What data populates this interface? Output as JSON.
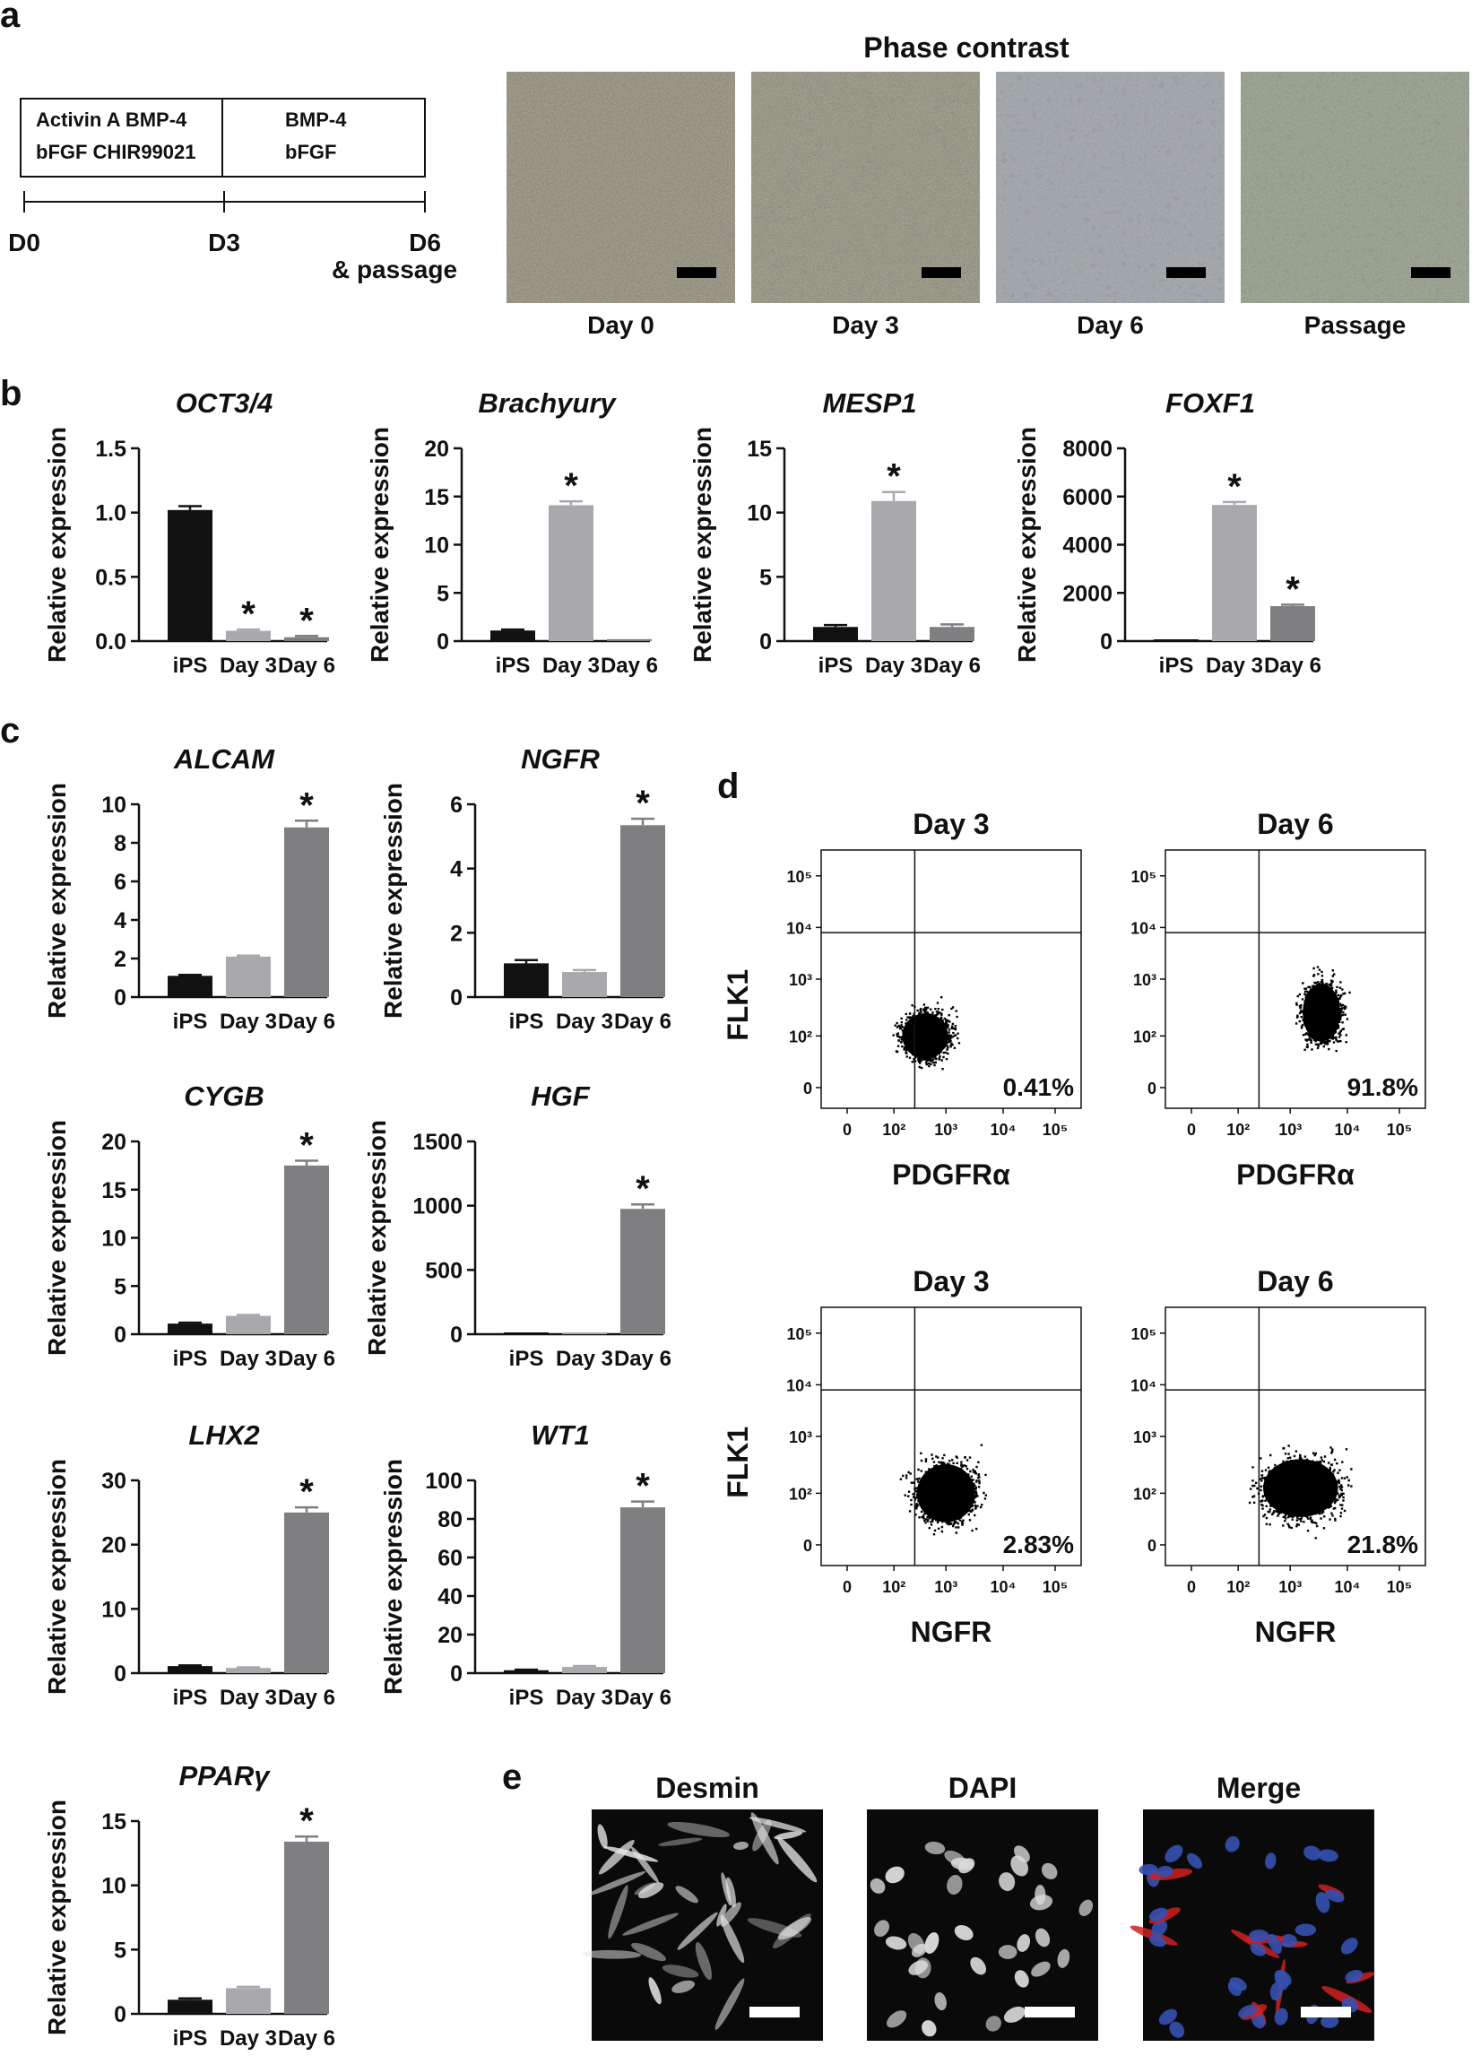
{
  "panels": {
    "a": "a",
    "b": "b",
    "c": "c",
    "d": "d",
    "e": "e"
  },
  "protocol": {
    "box1_line1": "Activin A BMP-4",
    "box1_line2": "bFGF CHIR99021",
    "box2_line1": "BMP-4",
    "box2_line2": "bFGF",
    "t0": "D0",
    "t3": "D3",
    "t6": "D6",
    "t6_sub": "& passage"
  },
  "phase_contrast": {
    "title": "Phase contrast",
    "images": [
      {
        "label": "Day 0",
        "tone": "#8e8a78"
      },
      {
        "label": "Day 3",
        "tone": "#908d7b"
      },
      {
        "label": "Day 6",
        "tone": "#9aa0a6"
      },
      {
        "label": "Passage",
        "tone": "#8f9a86"
      }
    ]
  },
  "colors": {
    "ips": "#111111",
    "day3": "#a9a9ad",
    "day6": "#7f7f81",
    "red": "#d02020",
    "blue": "#3550b0"
  },
  "chart_data": [
    {
      "type": "bar",
      "title": "OCT3/4",
      "ylabel": "Relative expression",
      "categories": [
        "iPS",
        "Day 3",
        "Day 6"
      ],
      "values": [
        1.02,
        0.08,
        0.03
      ],
      "errors": [
        0.03,
        0.01,
        0.01
      ],
      "ylim": [
        0,
        1.5
      ],
      "ticks": [
        "0.0",
        "0.5",
        "1.0",
        "1.5"
      ],
      "stars": [
        false,
        true,
        true
      ]
    },
    {
      "type": "bar",
      "title": "Brachyury",
      "ylabel": "Relative expression",
      "categories": [
        "iPS",
        "Day 3",
        "Day 6"
      ],
      "values": [
        1.1,
        14.1,
        0.2
      ],
      "errors": [
        0.1,
        0.4,
        0.05
      ],
      "ylim": [
        0,
        20
      ],
      "ticks": [
        "0",
        "5",
        "10",
        "15",
        "20"
      ],
      "stars": [
        false,
        true,
        false
      ]
    },
    {
      "type": "bar",
      "title": "MESP1",
      "ylabel": "Relative expression",
      "categories": [
        "iPS",
        "Day 3",
        "Day 6"
      ],
      "values": [
        1.1,
        10.9,
        1.1
      ],
      "errors": [
        0.15,
        0.7,
        0.2
      ],
      "ylim": [
        0,
        15
      ],
      "ticks": [
        "0",
        "5",
        "10",
        "15"
      ],
      "stars": [
        false,
        true,
        false
      ]
    },
    {
      "type": "bar",
      "title": "FOXF1",
      "ylabel": "Relative expression",
      "categories": [
        "iPS",
        "Day 3",
        "Day 6"
      ],
      "values": [
        5,
        5650,
        1450
      ],
      "errors": [
        2,
        120,
        60
      ],
      "ylim": [
        0,
        8000
      ],
      "ticks": [
        "0",
        "2000",
        "4000",
        "6000",
        "8000"
      ],
      "stars": [
        false,
        true,
        true
      ]
    },
    {
      "type": "bar",
      "title": "ALCAM",
      "ylabel": "Relative expression",
      "categories": [
        "iPS",
        "Day 3",
        "Day 6"
      ],
      "values": [
        1.1,
        2.1,
        8.8
      ],
      "errors": [
        0.05,
        0.05,
        0.35
      ],
      "ylim": [
        0,
        10
      ],
      "ticks": [
        "0",
        "2",
        "4",
        "6",
        "8",
        "10"
      ],
      "stars": [
        false,
        false,
        true
      ]
    },
    {
      "type": "bar",
      "title": "NGFR",
      "ylabel": "Relative expression",
      "categories": [
        "iPS",
        "Day 3",
        "Day 6"
      ],
      "values": [
        1.05,
        0.78,
        5.35
      ],
      "errors": [
        0.1,
        0.06,
        0.2
      ],
      "ylim": [
        0,
        6
      ],
      "ticks": [
        "0",
        "2",
        "4",
        "6"
      ],
      "stars": [
        false,
        false,
        true
      ]
    },
    {
      "type": "bar",
      "title": "CYGB",
      "ylabel": "Relative expression",
      "categories": [
        "iPS",
        "Day 3",
        "Day 6"
      ],
      "values": [
        1.1,
        1.9,
        17.5
      ],
      "errors": [
        0.1,
        0.1,
        0.5
      ],
      "ylim": [
        0,
        20
      ],
      "ticks": [
        "0",
        "5",
        "10",
        "15",
        "20"
      ],
      "stars": [
        false,
        false,
        true
      ]
    },
    {
      "type": "bar",
      "title": "HGF",
      "ylabel": "Relative expression",
      "categories": [
        "iPS",
        "Day 3",
        "Day 6"
      ],
      "values": [
        1,
        2,
        975
      ],
      "errors": [
        0.5,
        0.5,
        35
      ],
      "ylim": [
        0,
        1500
      ],
      "ticks": [
        "0",
        "500",
        "1000",
        "1500"
      ],
      "stars": [
        false,
        false,
        true
      ]
    },
    {
      "type": "bar",
      "title": "LHX2",
      "ylabel": "Relative expression",
      "categories": [
        "iPS",
        "Day 3",
        "Day 6"
      ],
      "values": [
        1.1,
        0.8,
        25
      ],
      "errors": [
        0.1,
        0.1,
        0.8
      ],
      "ylim": [
        0,
        30
      ],
      "ticks": [
        "0",
        "10",
        "20",
        "30"
      ],
      "stars": [
        false,
        false,
        true
      ]
    },
    {
      "type": "bar",
      "title": "WT1",
      "ylabel": "Relative expression",
      "categories": [
        "iPS",
        "Day 3",
        "Day 6"
      ],
      "values": [
        1.5,
        3.2,
        86
      ],
      "errors": [
        0.3,
        0.5,
        3
      ],
      "ylim": [
        0,
        100
      ],
      "ticks": [
        "0",
        "20",
        "40",
        "60",
        "80",
        "100"
      ],
      "stars": [
        false,
        false,
        true
      ]
    },
    {
      "type": "bar",
      "title": "PPARγ",
      "ylabel": "Relative expression",
      "categories": [
        "iPS",
        "Day 3",
        "Day 6"
      ],
      "values": [
        1.1,
        2.0,
        13.4
      ],
      "errors": [
        0.1,
        0.1,
        0.4
      ],
      "ylim": [
        0,
        15
      ],
      "ticks": [
        "0",
        "5",
        "10",
        "15"
      ],
      "stars": [
        false,
        false,
        true
      ]
    }
  ],
  "flow": {
    "ylabel": "FLK1",
    "yticks": [
      "10⁵",
      "10⁴",
      "10³",
      "10²",
      "0"
    ],
    "xticks": [
      "0",
      "10²",
      "10³",
      "10⁴",
      "10⁵"
    ],
    "plots": [
      {
        "title": "Day 3",
        "xlabel": "PDGFRα",
        "percent": "0.41%",
        "cloud": {
          "cx": 0.4,
          "cy": 0.72,
          "rx": 0.11,
          "ry": 0.11
        }
      },
      {
        "title": "Day 6",
        "xlabel": "PDGFRα",
        "percent": "91.8%",
        "cloud": {
          "cx": 0.6,
          "cy": 0.63,
          "rx": 0.09,
          "ry": 0.14
        }
      },
      {
        "title": "Day 3",
        "xlabel": "NGFR",
        "percent": "2.83%",
        "cloud": {
          "cx": 0.48,
          "cy": 0.72,
          "rx": 0.14,
          "ry": 0.14
        }
      },
      {
        "title": "Day 6",
        "xlabel": "NGFR",
        "percent": "21.8%",
        "cloud": {
          "cx": 0.52,
          "cy": 0.7,
          "rx": 0.18,
          "ry": 0.14
        }
      }
    ]
  },
  "fluorescence": {
    "images": [
      {
        "label": "Desmin"
      },
      {
        "label": "DAPI"
      },
      {
        "label": "Merge"
      }
    ]
  }
}
